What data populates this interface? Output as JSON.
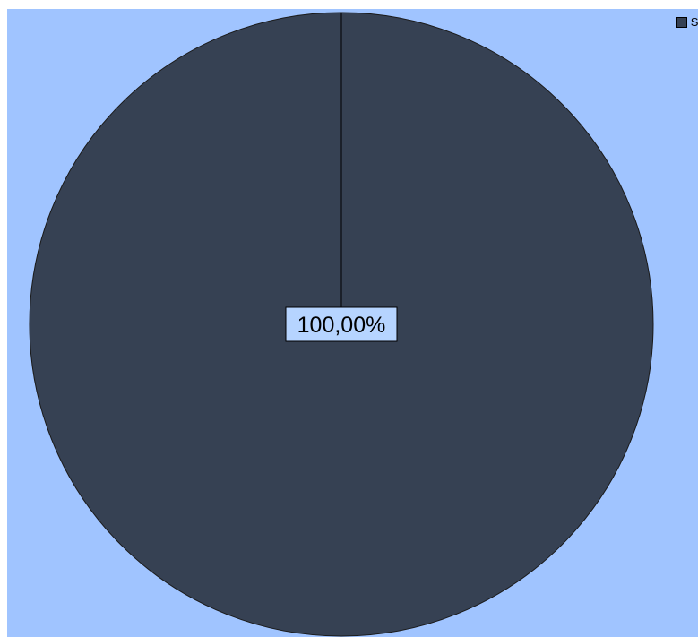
{
  "chart_data": {
    "type": "pie",
    "categories": [
      "Sí"
    ],
    "values": [
      100
    ],
    "data_labels": [
      "100,00%"
    ],
    "legend": {
      "position": "top-right",
      "entries": [
        "Sí"
      ]
    },
    "colors": {
      "background": "#a0c4ff",
      "slice": "#364153",
      "slice_stroke": "#1a1a1a",
      "label_background": "#b6d4ff",
      "label_border": "#000000"
    }
  }
}
